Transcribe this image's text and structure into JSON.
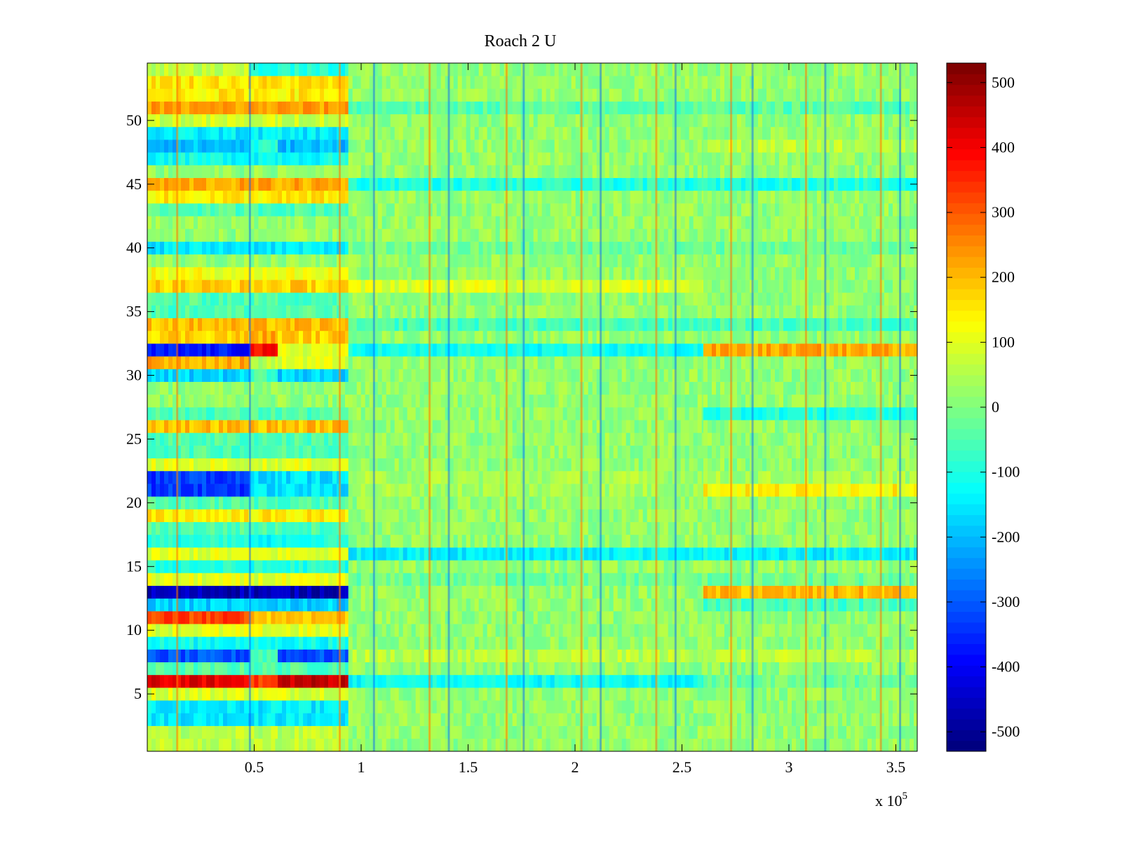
{
  "chart_data": {
    "type": "heatmap",
    "title": "Roach 2 U",
    "xlabel": "",
    "ylabel": "",
    "x_exponent_label": "x 10",
    "x_exponent_power": "5",
    "xlim": [
      0,
      3.6
    ],
    "ylim": [
      0.5,
      54.5
    ],
    "rows": 54,
    "x_ticks": [
      {
        "value": 0.5,
        "label": "0.5"
      },
      {
        "value": 1,
        "label": "1"
      },
      {
        "value": 1.5,
        "label": "1.5"
      },
      {
        "value": 2,
        "label": "2"
      },
      {
        "value": 2.5,
        "label": "2.5"
      },
      {
        "value": 3,
        "label": "3"
      },
      {
        "value": 3.5,
        "label": "3.5"
      }
    ],
    "y_ticks": [
      {
        "value": 5,
        "label": "5"
      },
      {
        "value": 10,
        "label": "10"
      },
      {
        "value": 15,
        "label": "15"
      },
      {
        "value": 20,
        "label": "20"
      },
      {
        "value": 25,
        "label": "25"
      },
      {
        "value": 30,
        "label": "30"
      },
      {
        "value": 35,
        "label": "35"
      },
      {
        "value": 40,
        "label": "40"
      },
      {
        "value": 45,
        "label": "45"
      },
      {
        "value": 50,
        "label": "50"
      }
    ],
    "colorbar": {
      "range": [
        -530,
        530
      ],
      "colormap": "jet",
      "ticks": [
        {
          "value": 500,
          "label": "500"
        },
        {
          "value": 400,
          "label": "400"
        },
        {
          "value": 300,
          "label": "300"
        },
        {
          "value": 200,
          "label": "200"
        },
        {
          "value": 100,
          "label": "100"
        },
        {
          "value": 0,
          "label": "0"
        },
        {
          "value": -100,
          "label": "-100"
        },
        {
          "value": -200,
          "label": "-200"
        },
        {
          "value": -300,
          "label": "-300"
        },
        {
          "value": -400,
          "label": "-400"
        },
        {
          "value": -500,
          "label": "-500"
        }
      ]
    },
    "segments_x": [
      0,
      0.48,
      0.61,
      0.94,
      2.6,
      3.6
    ],
    "row_values": {
      "1": [
        60,
        60,
        60,
        20,
        20
      ],
      "2": [
        60,
        60,
        60,
        20,
        20
      ],
      "3": [
        -150,
        -150,
        -150,
        20,
        20
      ],
      "4": [
        -150,
        -150,
        -150,
        20,
        20
      ],
      "5": [
        100,
        100,
        100,
        20,
        20
      ],
      "6": [
        420,
        330,
        460,
        -120,
        -20
      ],
      "7": [
        -50,
        -50,
        -50,
        20,
        20
      ],
      "8": [
        -320,
        -50,
        -320,
        60,
        60
      ],
      "9": [
        -120,
        -120,
        -120,
        20,
        20
      ],
      "10": [
        100,
        100,
        100,
        20,
        20
      ],
      "11": [
        330,
        200,
        200,
        20,
        20
      ],
      "12": [
        -180,
        -180,
        -180,
        20,
        -60
      ],
      "13": [
        -470,
        -470,
        -470,
        20,
        200
      ],
      "14": [
        100,
        100,
        100,
        -20,
        -20
      ],
      "15": [
        -100,
        -100,
        -100,
        20,
        20
      ],
      "16": [
        100,
        100,
        100,
        -140,
        -140
      ],
      "17": [
        -100,
        -150,
        -100,
        20,
        20
      ],
      "18": [
        -50,
        -50,
        -50,
        20,
        20
      ],
      "19": [
        150,
        150,
        150,
        20,
        20
      ],
      "20": [
        -50,
        -50,
        -50,
        20,
        20
      ],
      "21": [
        -340,
        -160,
        -160,
        40,
        140
      ],
      "22": [
        -340,
        -160,
        -160,
        40,
        40
      ],
      "23": [
        100,
        100,
        100,
        20,
        20
      ],
      "24": [
        -50,
        -50,
        -50,
        20,
        20
      ],
      "25": [
        -50,
        -50,
        -50,
        20,
        20
      ],
      "26": [
        200,
        200,
        200,
        20,
        20
      ],
      "27": [
        -50,
        -50,
        -50,
        20,
        -100
      ],
      "28": [
        20,
        20,
        20,
        20,
        20
      ],
      "29": [
        20,
        20,
        20,
        20,
        20
      ],
      "30": [
        -180,
        -60,
        -180,
        20,
        20
      ],
      "31": [
        220,
        60,
        100,
        20,
        20
      ],
      "32": [
        -380,
        380,
        100,
        -120,
        220
      ],
      "33": [
        180,
        220,
        180,
        20,
        20
      ],
      "34": [
        200,
        200,
        200,
        -60,
        -60
      ],
      "35": [
        -50,
        -50,
        -50,
        20,
        20
      ],
      "36": [
        -50,
        -50,
        -50,
        20,
        20
      ],
      "37": [
        180,
        180,
        180,
        100,
        20
      ],
      "38": [
        120,
        120,
        120,
        20,
        20
      ],
      "39": [
        20,
        20,
        20,
        20,
        20
      ],
      "40": [
        -150,
        -150,
        -150,
        -20,
        -20
      ],
      "41": [
        20,
        20,
        20,
        20,
        20
      ],
      "42": [
        20,
        20,
        20,
        20,
        20
      ],
      "43": [
        -50,
        -50,
        -50,
        20,
        20
      ],
      "44": [
        150,
        150,
        150,
        20,
        20
      ],
      "45": [
        220,
        220,
        220,
        -100,
        -100
      ],
      "46": [
        20,
        20,
        20,
        20,
        20
      ],
      "47": [
        -120,
        -120,
        -120,
        20,
        20
      ],
      "48": [
        -200,
        -100,
        -200,
        20,
        60
      ],
      "49": [
        -150,
        -150,
        -150,
        20,
        20
      ],
      "50": [
        80,
        80,
        80,
        20,
        20
      ],
      "51": [
        230,
        230,
        230,
        -40,
        -40
      ],
      "52": [
        150,
        150,
        150,
        20,
        20
      ],
      "53": [
        160,
        160,
        160,
        20,
        20
      ],
      "54": [
        60,
        -100,
        -100,
        20,
        20
      ]
    },
    "vertical_stripes_x": [
      0.14,
      0.48,
      0.9,
      1.06,
      1.32,
      1.41,
      1.68,
      1.76,
      2.03,
      2.12,
      2.38,
      2.47,
      2.73,
      2.83,
      3.08,
      3.17,
      3.43,
      3.52
    ]
  }
}
